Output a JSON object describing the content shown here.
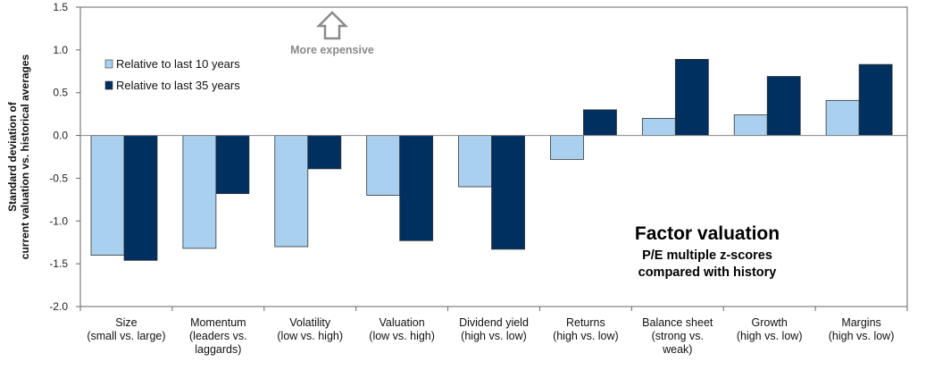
{
  "chart_data": {
    "type": "bar",
    "title": "Factor valuation",
    "subtitle_lines": [
      "P/E multiple z-scores",
      "compared with history"
    ],
    "ylabel_lines": [
      "Standard deviation of",
      "current valuation vs. historical averages"
    ],
    "xlabel": "",
    "ylim": [
      -2.0,
      1.5
    ],
    "yticks": [
      1.5,
      1.0,
      0.5,
      0.0,
      -0.5,
      -1.0,
      -1.5,
      -2.0
    ],
    "ytick_labels": [
      "1.5",
      "1.0",
      "0.5",
      "0.0",
      "-0.5",
      "-1.0",
      "-1.5",
      "-2.0"
    ],
    "grid": false,
    "legend_position": "top-left",
    "categories": [
      [
        "Size",
        "(small vs. large)"
      ],
      [
        "Momentum",
        "(leaders vs.",
        "laggards)"
      ],
      [
        "Volatility",
        "(low vs. high)"
      ],
      [
        "Valuation",
        "(low vs. high)"
      ],
      [
        "Dividend yield",
        "(high vs. low)"
      ],
      [
        "Returns",
        "(high vs. low)"
      ],
      [
        "Balance sheet",
        "(strong vs.",
        "weak)"
      ],
      [
        "Growth",
        "(high vs. low)"
      ],
      [
        "Margins",
        "(high vs. low)"
      ]
    ],
    "series": [
      {
        "name": "Relative to last 10 years",
        "color": "#a9d1ef",
        "values": [
          -1.4,
          -1.32,
          -1.3,
          -0.7,
          -0.6,
          -0.28,
          0.2,
          0.24,
          0.41
        ]
      },
      {
        "name": "Relative to last 35 years",
        "color": "#00305f",
        "values": [
          -1.46,
          -0.68,
          -0.39,
          -1.23,
          -1.33,
          0.3,
          0.89,
          0.69,
          0.83
        ]
      }
    ],
    "annotation": {
      "text": "More expensive",
      "icon": "up-arrow-icon",
      "color": "#8a8a8a"
    }
  }
}
